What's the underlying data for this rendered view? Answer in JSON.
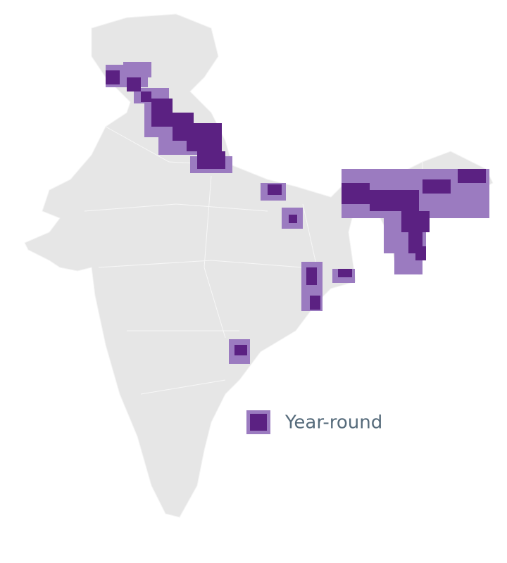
{
  "legend": {
    "label": "Year-round"
  }
}
